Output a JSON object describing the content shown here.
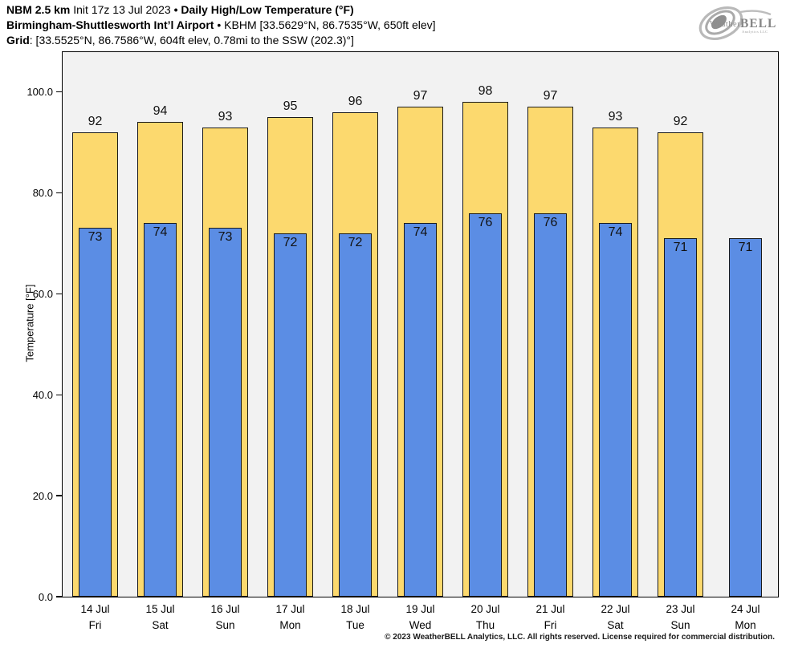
{
  "header": {
    "line1_bold1": "NBM 2.5 km",
    "line1_normal": " Init 17z 13 Jul 2023 ",
    "line1_bold2": "• Daily High/Low Temperature (°F)",
    "line2_bold": "Birmingham-Shuttlesworth Int’l Airport",
    "line2_normal": " • KBHM [33.5629°N, 86.7535°W, 650ft elev]",
    "line3_bold": "Grid",
    "line3_normal": ": [33.5525°N, 86.7586°W, 604ft elev, 0.78mi to the SSW (202.3)°]"
  },
  "logo": {
    "brand_weather": "Weather",
    "brand_bell": "BELL",
    "brand_sub": "Analytics LLC"
  },
  "chart_data": {
    "type": "bar",
    "title": "Daily High/Low Temperature (°F)",
    "xlabel": "",
    "ylabel": "Temperature [°F]",
    "ylim": [
      0,
      107.9
    ],
    "yticks": [
      0,
      20,
      40,
      60,
      80,
      100
    ],
    "ytick_labels": [
      "0.0",
      "20.0",
      "40.0",
      "60.0",
      "80.0",
      "100.0"
    ],
    "grid": false,
    "legend_position": "none",
    "plot_background": "#f2f2f2",
    "bar_border_color": "#1a1a1a",
    "categories": [
      {
        "date": "14 Jul",
        "day": "Fri"
      },
      {
        "date": "15 Jul",
        "day": "Sat"
      },
      {
        "date": "16 Jul",
        "day": "Sun"
      },
      {
        "date": "17 Jul",
        "day": "Mon"
      },
      {
        "date": "18 Jul",
        "day": "Tue"
      },
      {
        "date": "19 Jul",
        "day": "Wed"
      },
      {
        "date": "20 Jul",
        "day": "Thu"
      },
      {
        "date": "21 Jul",
        "day": "Fri"
      },
      {
        "date": "22 Jul",
        "day": "Sat"
      },
      {
        "date": "23 Jul",
        "day": "Sun"
      },
      {
        "date": "24 Jul",
        "day": "Mon"
      }
    ],
    "series": [
      {
        "name": "Daily High",
        "color": "#FCD96E",
        "values": [
          92,
          94,
          93,
          95,
          96,
          97,
          98,
          97,
          93,
          92,
          null
        ]
      },
      {
        "name": "Daily Low",
        "color": "#5B8DE4",
        "values": [
          73,
          74,
          73,
          72,
          72,
          74,
          76,
          76,
          74,
          71,
          71
        ]
      }
    ]
  },
  "footer": {
    "copyright": "© 2023 WeatherBELL Analytics, LLC. All rights reserved. License required for commercial distribution."
  }
}
